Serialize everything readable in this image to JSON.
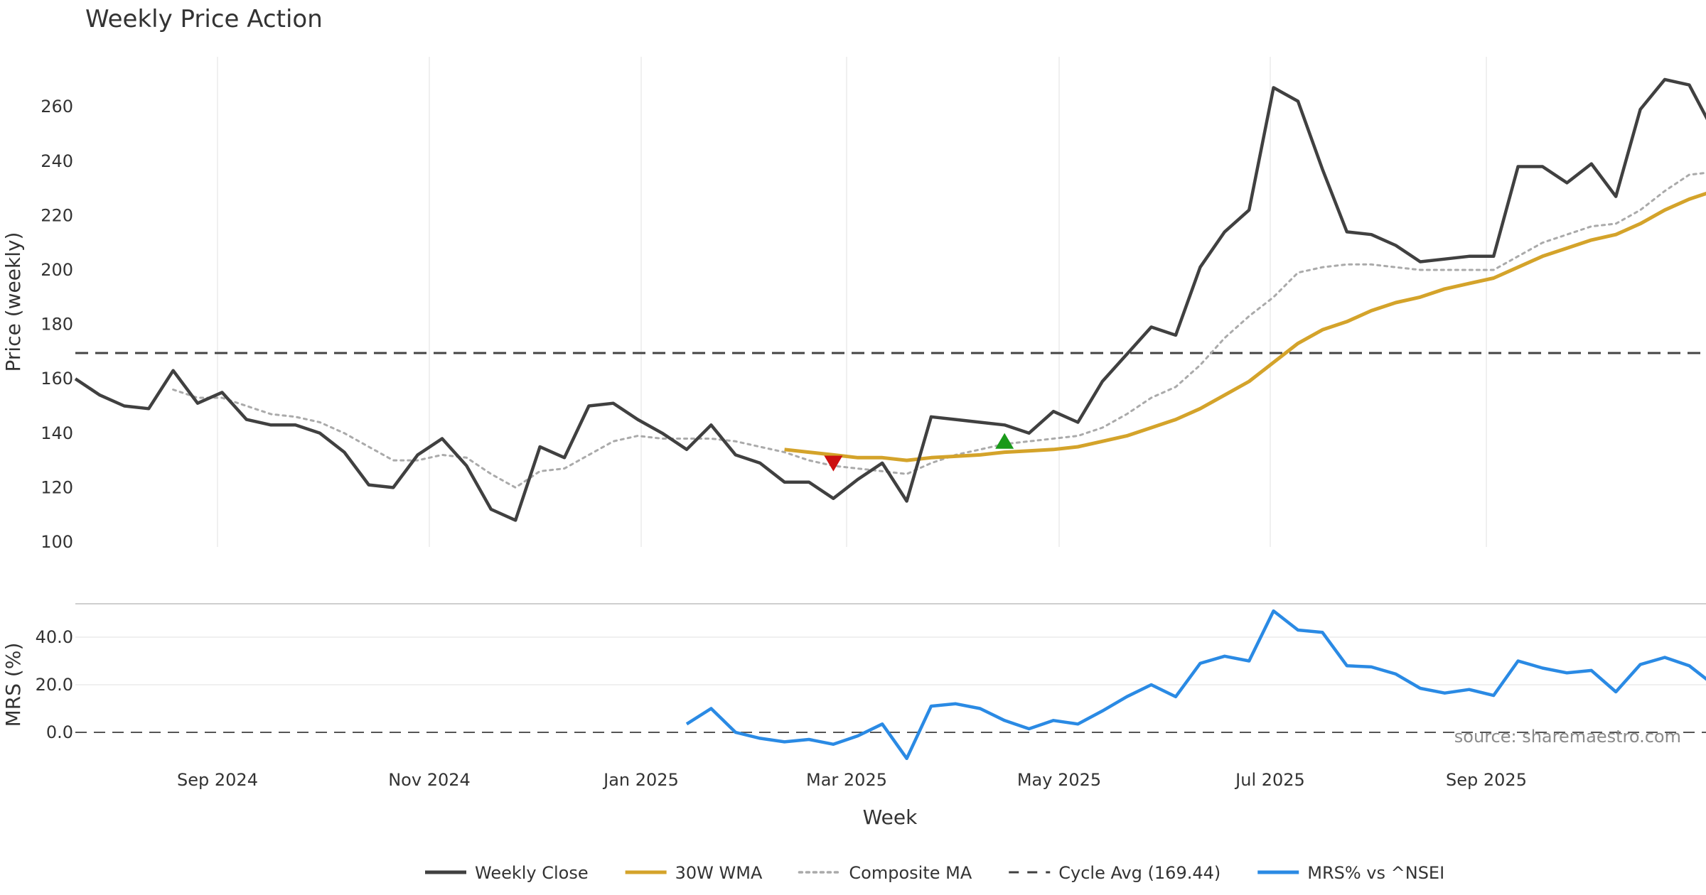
{
  "chart_data": {
    "type": "line",
    "title": "Weekly Price Action",
    "xlabel": "Week",
    "source": "source: sharemaestro.com",
    "x_ticks": [
      "Sep 2024",
      "Nov 2024",
      "Jan 2025",
      "Mar 2025",
      "May 2025",
      "Jul 2025",
      "Sep 2025"
    ],
    "price_panel": {
      "ylabel": "Price (weekly)",
      "ylim": [
        100,
        280
      ],
      "y_ticks": [
        100,
        120,
        140,
        160,
        180,
        200,
        220,
        240,
        260
      ],
      "cycle_avg": 169.44,
      "series": [
        {
          "name": "Weekly Close",
          "color": "#404040",
          "style": "solid",
          "values": [
            160,
            154,
            150,
            149,
            163,
            151,
            155,
            145,
            143,
            143,
            140,
            133,
            121,
            120,
            132,
            138,
            128,
            112,
            108,
            135,
            131,
            150,
            151,
            145,
            140,
            134,
            143,
            132,
            129,
            122,
            122,
            116,
            123,
            129,
            115,
            146,
            145,
            144,
            143,
            140,
            148,
            144,
            159,
            169,
            179,
            176,
            201,
            214,
            222,
            267,
            262,
            237,
            214,
            213,
            209,
            203,
            204,
            205,
            205,
            238,
            238,
            232,
            239,
            227,
            259,
            270,
            268,
            251
          ]
        },
        {
          "name": "30W WMA",
          "color": "#d4a32a",
          "style": "solid",
          "values": [
            null,
            null,
            null,
            null,
            null,
            null,
            null,
            null,
            null,
            null,
            null,
            null,
            null,
            null,
            null,
            null,
            null,
            null,
            null,
            null,
            null,
            null,
            null,
            null,
            null,
            null,
            null,
            null,
            null,
            134,
            133,
            132,
            131,
            131,
            130,
            131,
            131.5,
            132,
            133,
            133.5,
            134,
            135,
            137,
            139,
            142,
            145,
            149,
            154,
            159,
            166,
            173,
            178,
            181,
            185,
            188,
            190,
            193,
            195,
            197,
            201,
            205,
            208,
            211,
            213,
            217,
            222,
            226,
            229
          ]
        },
        {
          "name": "Composite MA",
          "color": "#aaaaaa",
          "style": "dotted",
          "values": [
            null,
            null,
            null,
            null,
            156,
            153,
            153,
            150,
            147,
            146,
            144,
            140,
            135,
            130,
            130,
            132,
            131,
            125,
            120,
            126,
            127,
            132,
            137,
            139,
            138,
            138,
            138,
            137,
            135,
            133,
            130,
            128,
            127,
            126,
            125,
            129,
            132,
            134,
            136,
            137,
            138,
            139,
            142,
            147,
            153,
            157,
            165,
            175,
            183,
            190,
            199,
            201,
            202,
            202,
            201,
            200,
            200,
            200,
            200,
            205,
            210,
            213,
            216,
            217,
            222,
            229,
            235,
            236
          ]
        }
      ],
      "markers": [
        {
          "type": "sell",
          "shape": "down-triangle",
          "color": "#cc1111",
          "week_index": 31,
          "price": 129
        },
        {
          "type": "buy",
          "shape": "up-triangle",
          "color": "#1a9a1a",
          "week_index": 38,
          "price": 137
        }
      ]
    },
    "mrs_panel": {
      "ylabel": "MRS (%)",
      "ylim": [
        -12,
        55
      ],
      "y_ticks": [
        "0.0",
        "20.0",
        "40.0"
      ],
      "y_tick_values": [
        0,
        20,
        40
      ],
      "series": [
        {
          "name": "MRS% vs ^NSEI",
          "color": "#2a8ae4",
          "style": "solid",
          "start_index": 25,
          "values": [
            3.5,
            10,
            0,
            -2.5,
            -4,
            -3,
            -5,
            -1.5,
            3.5,
            -11,
            11,
            12,
            10,
            5,
            1.5,
            5,
            3.5,
            9,
            15,
            20,
            15,
            29,
            32,
            30,
            51,
            43,
            42,
            28,
            27.5,
            24.5,
            18.5,
            16.5,
            18,
            15.5,
            30,
            27,
            25,
            26,
            17,
            28.5,
            31.5,
            28,
            20
          ]
        }
      ]
    },
    "legend": [
      {
        "label": "Weekly Close",
        "color": "#404040",
        "style": "solid"
      },
      {
        "label": "30W WMA",
        "color": "#d4a32a",
        "style": "solid"
      },
      {
        "label": "Composite MA",
        "color": "#aaaaaa",
        "style": "dotted"
      },
      {
        "label": "Cycle Avg (169.44)",
        "color": "#404040",
        "style": "dashed"
      },
      {
        "label": "MRS% vs ^NSEI",
        "color": "#2a8ae4",
        "style": "solid"
      }
    ]
  }
}
